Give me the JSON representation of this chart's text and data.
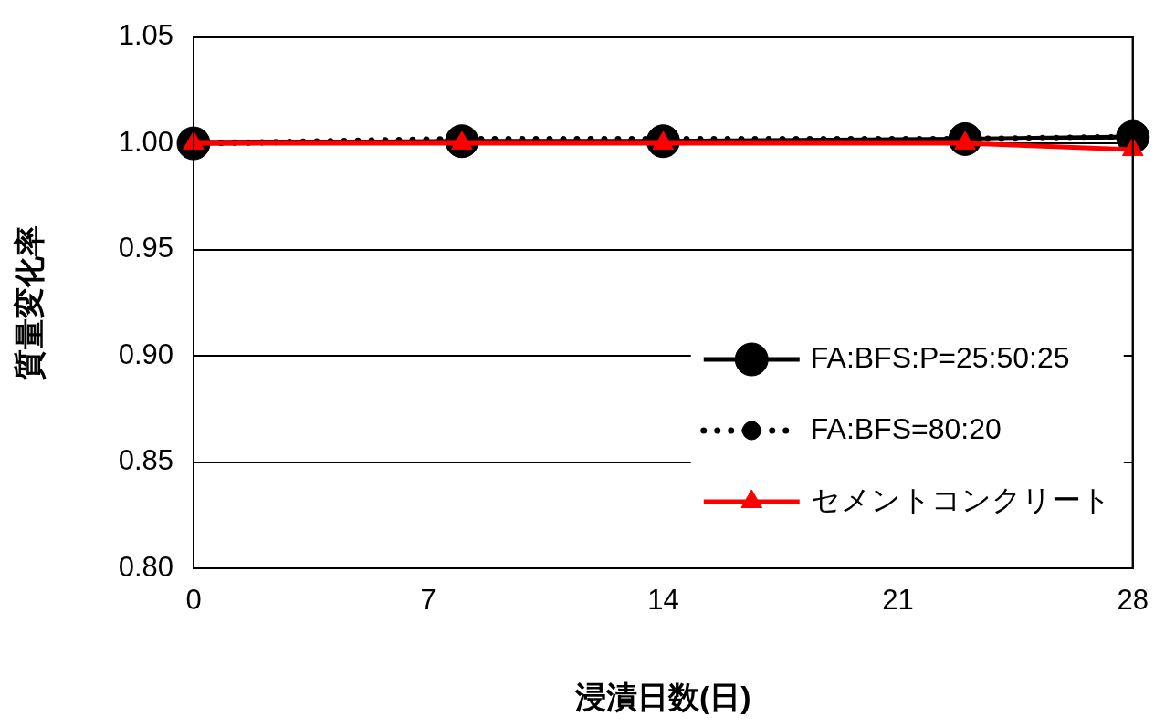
{
  "chart_data": {
    "type": "line",
    "xlabel": "浸漬日数(日)",
    "ylabel": "質量変化率",
    "x": [
      0,
      8,
      14,
      23,
      28
    ],
    "series": [
      {
        "name": "FA:BFS:P=25:50:25",
        "color": "#000000",
        "values": [
          1.0,
          1.001,
          1.001,
          1.002,
          1.003
        ],
        "marker": "circle",
        "line_style": "solid"
      },
      {
        "name": "FA:BFS=80:20",
        "color": "#000000",
        "values": [
          1.0,
          1.002,
          1.002,
          1.002,
          1.003
        ],
        "marker": "circle",
        "line_style": "dotted"
      },
      {
        "name": "セメントコンクリート",
        "color": "#ff0000",
        "values": [
          1.0,
          1.0,
          1.0,
          1.0,
          0.997
        ],
        "marker": "triangle",
        "line_style": "solid"
      }
    ],
    "xlim": [
      0,
      28
    ],
    "xticks": [
      0,
      7,
      14,
      21,
      28
    ],
    "ylim": [
      0.8,
      1.05
    ],
    "yticks": [
      {
        "value": 0.8,
        "label": "0.80"
      },
      {
        "value": 0.85,
        "label": "0.85"
      },
      {
        "value": 0.9,
        "label": "0.90"
      },
      {
        "value": 0.95,
        "label": "0.95"
      },
      {
        "value": 1.0,
        "label": "1.00"
      },
      {
        "value": 1.05,
        "label": "1.05"
      }
    ],
    "grid": "y",
    "legend": "bottom right"
  }
}
